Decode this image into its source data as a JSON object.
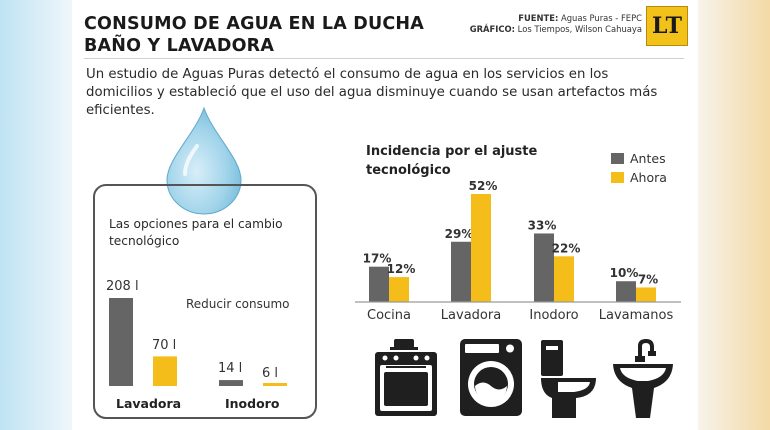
{
  "header": {
    "title_line1": "CONSUMO DE AGUA EN LA DUCHA",
    "title_line2": "BAÑO Y LAVADORA",
    "source_label": "FUENTE:",
    "source_value": "Aguas Puras - FEPC",
    "graphic_label": "GRÁFICO:",
    "graphic_value": "Los Tiempos, Wilson Cahuaya",
    "logo_text": "LT"
  },
  "intro": "Un estudio de Aguas Puras detectó el consumo de agua en los servicios en los domicilios y estableció que el uso del agua disminuye cuando se usan artefactos más eficientes.",
  "colors": {
    "antes": "#656565",
    "ahora": "#f5bd1a",
    "water": "#9fd3ea"
  },
  "icons": [
    "water-drop-icon",
    "stove-icon",
    "washing-machine-icon",
    "toilet-icon",
    "sink-icon"
  ],
  "chart_data": [
    {
      "type": "bar",
      "title": "Las opciones para el cambio tecnológico",
      "annotation": "Reducir consumo",
      "categories": [
        "Lavadora",
        "Inodoro"
      ],
      "series": [
        {
          "values": [
            208,
            14
          ],
          "labels": [
            "208 l",
            "14 l"
          ]
        },
        {
          "values": [
            70,
            6
          ],
          "labels": [
            "70 l",
            "6 l"
          ]
        }
      ],
      "ylim": [
        0,
        208
      ]
    },
    {
      "type": "bar",
      "title": "Incidencia por el ajuste tecnológico",
      "title_line1": "Incidencia por el ajuste",
      "title_line2": "tecnológico",
      "categories": [
        "Cocina",
        "Lavadora",
        "Inodoro",
        "Lavamanos"
      ],
      "series": [
        {
          "name": "Antes",
          "values": [
            17,
            29,
            33,
            10
          ],
          "labels": [
            "17%",
            "29%",
            "33%",
            "10%"
          ]
        },
        {
          "name": "Ahora",
          "values": [
            12,
            52,
            22,
            7
          ],
          "labels": [
            "12%",
            "52%",
            "22%",
            "7%"
          ]
        }
      ],
      "ylim": [
        0,
        52
      ],
      "legend": "top-right",
      "grid": false
    }
  ]
}
